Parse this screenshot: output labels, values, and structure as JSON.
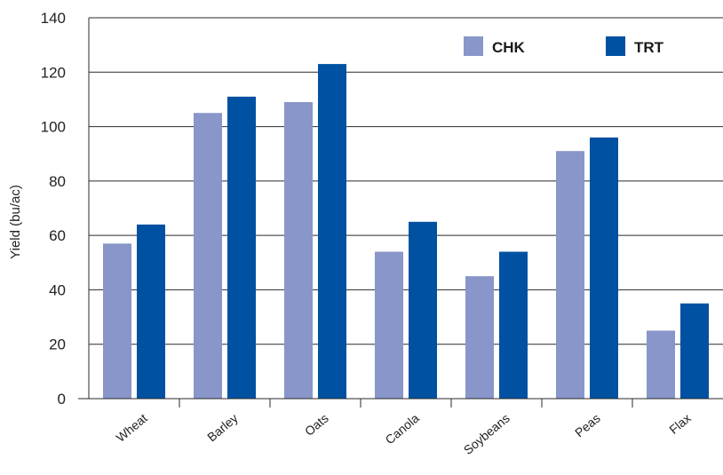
{
  "chart_data": {
    "type": "bar",
    "title": "",
    "xlabel": "",
    "ylabel": "Yield (bu/ac)",
    "ylim": [
      0,
      140
    ],
    "yticks": [
      0,
      20,
      40,
      60,
      80,
      100,
      120,
      140
    ],
    "grid": true,
    "legend_position": "top-right",
    "categories": [
      "Wheat",
      "Barley",
      "Oats",
      "Canola",
      "Soybeans",
      "Peas",
      "Flax"
    ],
    "series": [
      {
        "name": "CHK",
        "color": "#8896c9",
        "values": [
          57,
          105,
          109,
          54,
          45,
          91,
          25
        ]
      },
      {
        "name": "TRT",
        "color": "#0051a2",
        "values": [
          64,
          111,
          123,
          65,
          54,
          96,
          35
        ]
      }
    ]
  }
}
